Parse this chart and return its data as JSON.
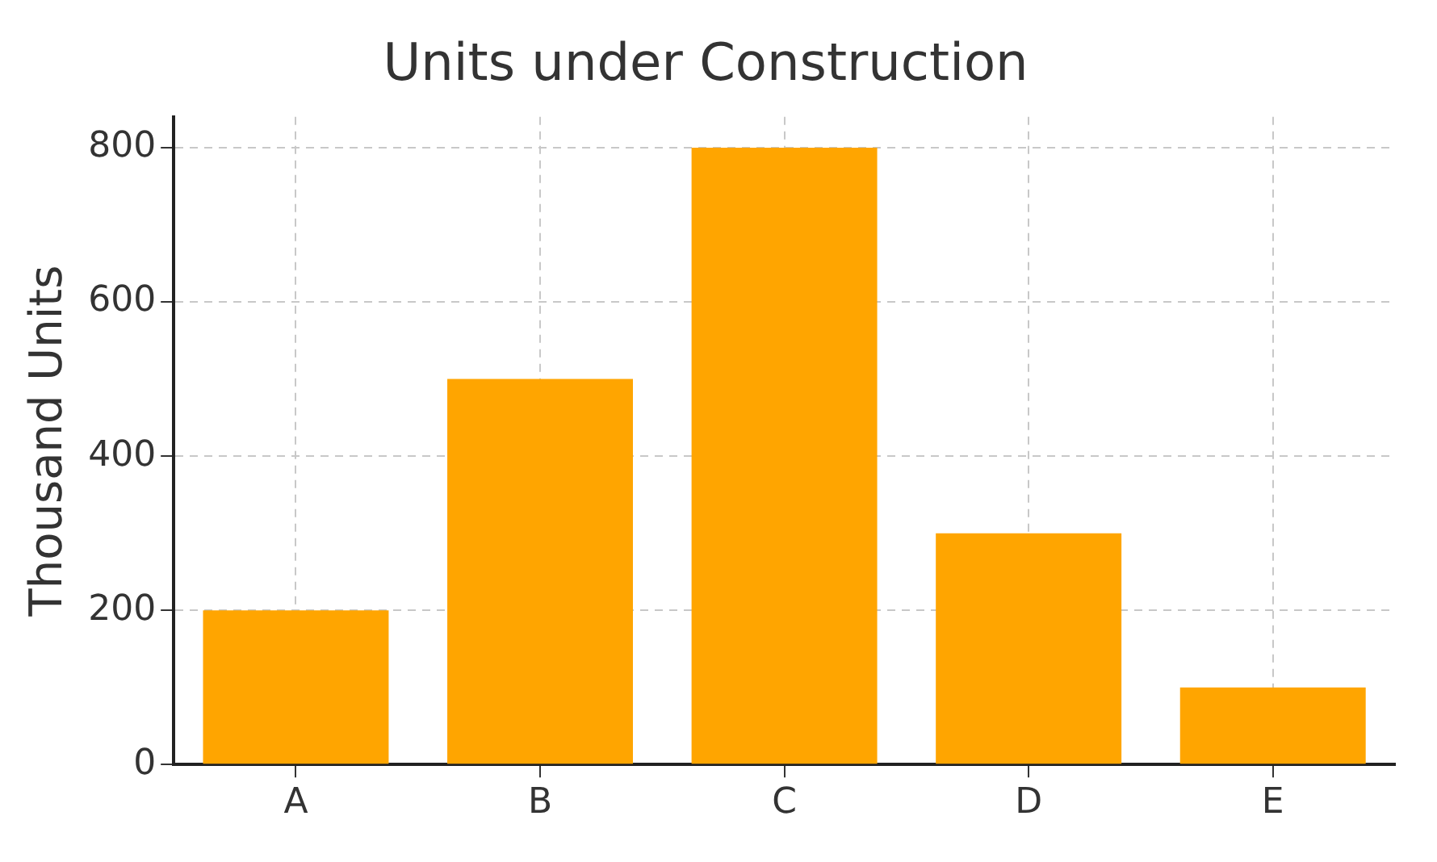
{
  "chart_data": {
    "type": "bar",
    "title": "Units under Construction",
    "ylabel": "Thousand Units",
    "categories": [
      "A",
      "B",
      "C",
      "D",
      "E"
    ],
    "values": [
      200,
      500,
      800,
      300,
      100
    ],
    "color": "#ffa500",
    "ylim": [
      0,
      840
    ],
    "yticks": [
      0,
      200,
      400,
      600,
      800
    ],
    "grid": true
  }
}
